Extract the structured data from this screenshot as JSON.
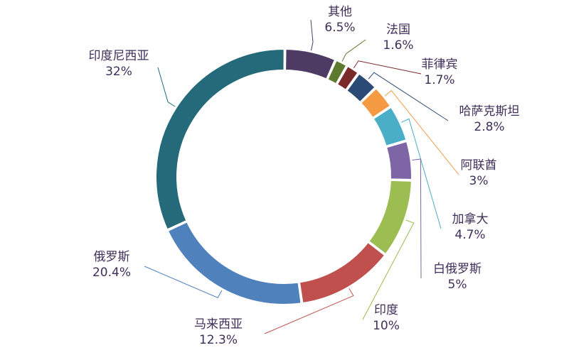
{
  "chart_data": {
    "type": "pie",
    "title": "",
    "categories": [
      "其他",
      "法国",
      "菲律宾",
      "哈萨克斯坦",
      "阿联酋",
      "加拿大",
      "白俄罗斯",
      "印度",
      "马来西亚",
      "俄罗斯",
      "印度尼西亚"
    ],
    "values": [
      6.5,
      1.6,
      1.7,
      2.8,
      3,
      4.7,
      5,
      10,
      12.3,
      20.4,
      32
    ],
    "value_labels": [
      "6.5%",
      "1.6%",
      "1.7%",
      "2.8%",
      "3%",
      "4.7%",
      "5%",
      "10%",
      "12.3%",
      "20.4%",
      "32%"
    ],
    "colors": [
      "#4e3b63",
      "#5e7a2f",
      "#7b2a2a",
      "#2b4a76",
      "#f39a43",
      "#4aaec6",
      "#7e66a6",
      "#9bbd52",
      "#c0504d",
      "#4f81bd",
      "#246a7a"
    ],
    "style": "donut",
    "legend": "none"
  }
}
